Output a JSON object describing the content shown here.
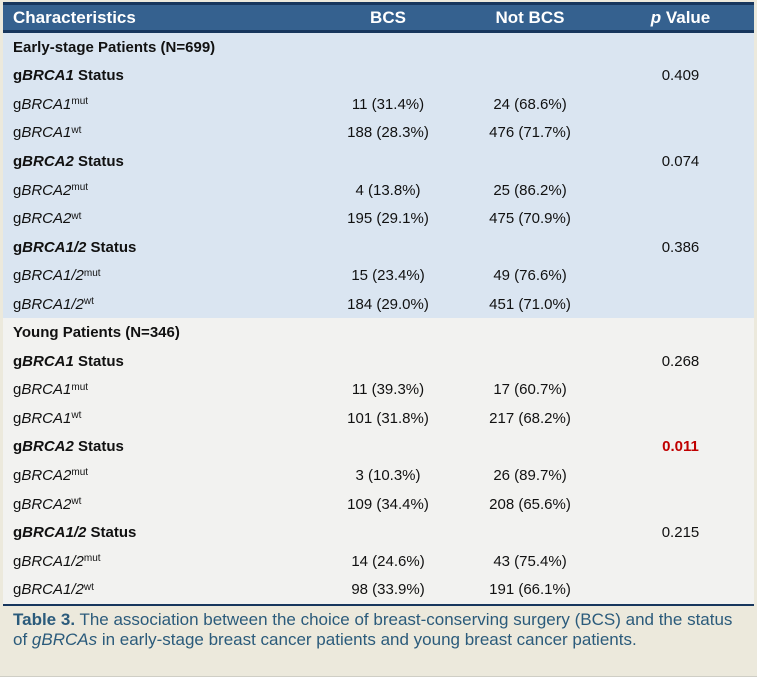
{
  "colors": {
    "header_bg": "#35618F",
    "header_text": "#FFFFFF",
    "rule_dark": "#17365D",
    "early_section_bg": "#DAE5F1",
    "young_section_bg": "#F2F2F0",
    "frame_bg": "#ECE9DC",
    "caption_text": "#2B5B7B",
    "p_highlight": "#C00000",
    "body_text": "#111111"
  },
  "table": {
    "columns": [
      "Characteristics",
      "BCS",
      "Not BCS"
    ],
    "p_header": {
      "italic": "p",
      "rest": " Value"
    },
    "rows": [
      {
        "type": "section",
        "section": "early",
        "text": "Early-stage Patients (N=699)"
      },
      {
        "type": "status",
        "section": "early",
        "pre": "g",
        "gene": "BRCA1",
        "post": " Status",
        "p": "0.409"
      },
      {
        "type": "data",
        "section": "early",
        "pre": "g",
        "gene": "BRCA1",
        "sup": "mut",
        "bcs": "11 (31.4%)",
        "not_bcs": "24 (68.6%)"
      },
      {
        "type": "data",
        "section": "early",
        "pre": "g",
        "gene": "BRCA1",
        "sup": "wt",
        "bcs": "188 (28.3%)",
        "not_bcs": "476 (71.7%)"
      },
      {
        "type": "status",
        "section": "early",
        "pre": "g",
        "gene": "BRCA2",
        "post": " Status",
        "p": "0.074"
      },
      {
        "type": "data",
        "section": "early",
        "pre": "g",
        "gene": "BRCA2",
        "sup": "mut",
        "bcs": "4 (13.8%)",
        "not_bcs": "25 (86.2%)"
      },
      {
        "type": "data",
        "section": "early",
        "pre": "g",
        "gene": "BRCA2",
        "sup": "wt",
        "bcs": "195 (29.1%)",
        "not_bcs": "475 (70.9%)"
      },
      {
        "type": "status",
        "section": "early",
        "pre": "g",
        "gene": "BRCA1/2",
        "post": " Status",
        "p": "0.386"
      },
      {
        "type": "data",
        "section": "early",
        "pre": "g",
        "gene": "BRCA1/2",
        "sup": "mut",
        "bcs": "15 (23.4%)",
        "not_bcs": "49 (76.6%)"
      },
      {
        "type": "data",
        "section": "early",
        "pre": "g",
        "gene": "BRCA1/2",
        "sup": "wt",
        "bcs": "184 (29.0%)",
        "not_bcs": "451 (71.0%)"
      },
      {
        "type": "section",
        "section": "young",
        "text": "Young Patients (N=346)"
      },
      {
        "type": "status",
        "section": "young",
        "pre": "g",
        "gene": "BRCA1",
        "post": " Status",
        "p": "0.268"
      },
      {
        "type": "data",
        "section": "young",
        "pre": "g",
        "gene": "BRCA1",
        "sup": "mut",
        "bcs": "11 (39.3%)",
        "not_bcs": "17 (60.7%)"
      },
      {
        "type": "data",
        "section": "young",
        "pre": "g",
        "gene": "BRCA1",
        "sup": "wt",
        "bcs": "101 (31.8%)",
        "not_bcs": "217 (68.2%)"
      },
      {
        "type": "status",
        "section": "young",
        "pre": "g",
        "gene": "BRCA2",
        "post": " Status",
        "p": "0.011",
        "highlight": true
      },
      {
        "type": "data",
        "section": "young",
        "pre": "g",
        "gene": "BRCA2",
        "sup": "mut",
        "bcs": "3 (10.3%)",
        "not_bcs": "26 (89.7%)"
      },
      {
        "type": "data",
        "section": "young",
        "pre": "g",
        "gene": "BRCA2",
        "sup": "wt",
        "bcs": "109 (34.4%)",
        "not_bcs": "208 (65.6%)"
      },
      {
        "type": "status",
        "section": "young",
        "pre": "g",
        "gene": "BRCA1/2",
        "post": " Status",
        "p": "0.215"
      },
      {
        "type": "data",
        "section": "young",
        "pre": "g",
        "gene": "BRCA1/2",
        "sup": "mut",
        "bcs": "14 (24.6%)",
        "not_bcs": "43 (75.4%)"
      },
      {
        "type": "data",
        "section": "young",
        "pre": "g",
        "gene": "BRCA1/2",
        "sup": "wt",
        "bcs": "98 (33.9%)",
        "not_bcs": "191 (66.1%)"
      }
    ]
  },
  "caption": {
    "label": "Table 3.",
    "text_1": " The association between the choice of breast-conserving surgery (BCS) and the status of ",
    "italic_term": "gBRCAs",
    "text_2": " in early-stage breast cancer patients and young breast cancer patients."
  }
}
